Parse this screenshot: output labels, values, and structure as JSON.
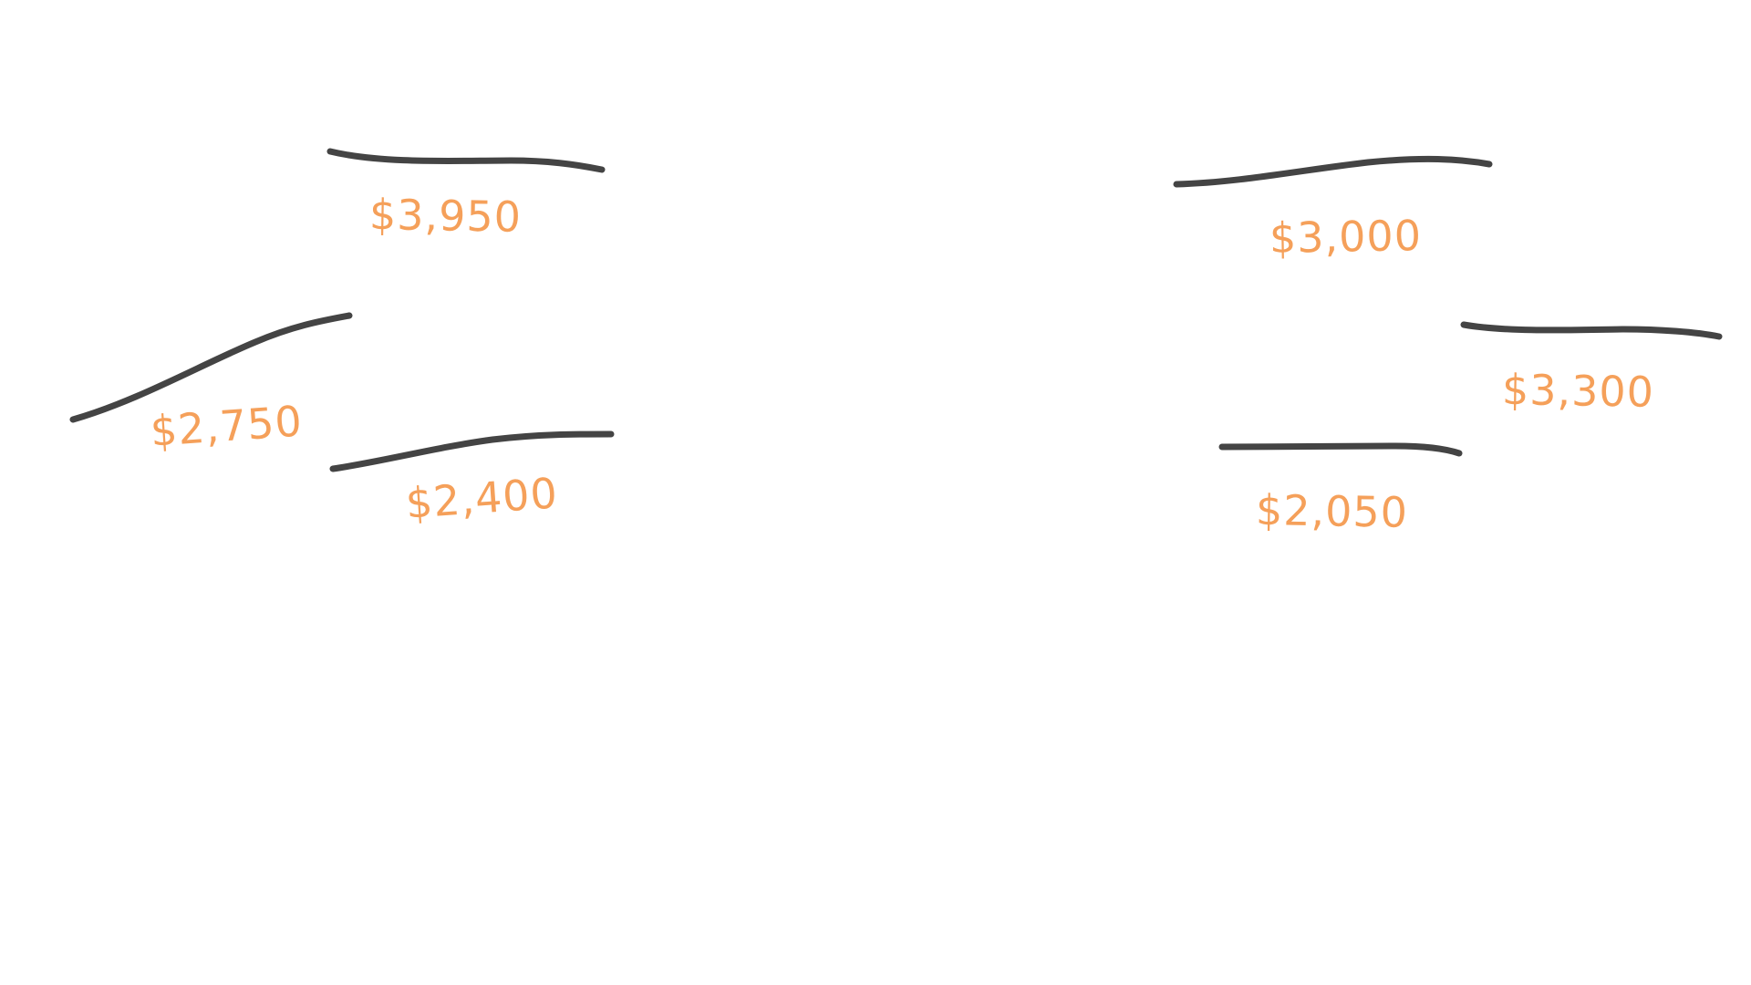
{
  "canvas": {
    "background_color": "#ffffff",
    "stroke_color": "#444444",
    "label_color": "#f5a05a"
  },
  "annotations": [
    {
      "id": "price-3950",
      "label": "$3,950"
    },
    {
      "id": "price-2750",
      "label": "$2,750"
    },
    {
      "id": "price-2400",
      "label": "$2,400"
    },
    {
      "id": "price-3000",
      "label": "$3,000"
    },
    {
      "id": "price-3300",
      "label": "$3,300"
    },
    {
      "id": "price-2050",
      "label": "$2,050"
    }
  ]
}
